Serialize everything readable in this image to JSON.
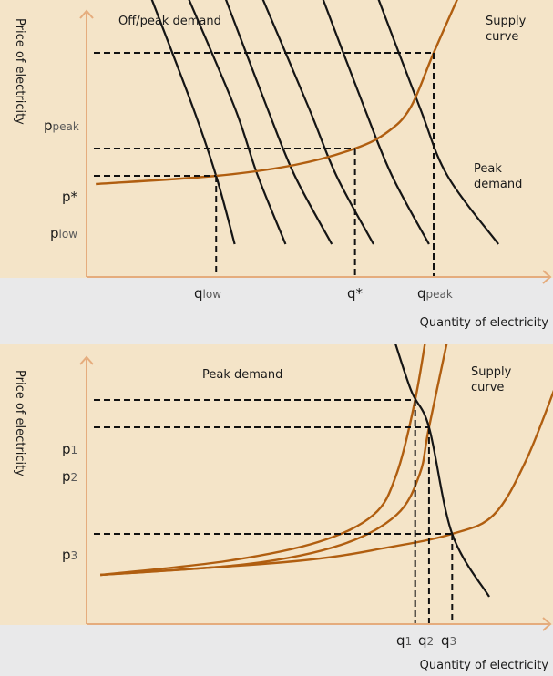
{
  "colors": {
    "plot_bg": "#f4e4c8",
    "page_bg": "#e9e9ea",
    "axis": "#e5ac7d",
    "supply": "#b05e10",
    "demand": "#151515"
  },
  "chart_data": [
    {
      "type": "line",
      "title": "",
      "ylabel": "Price of electricity",
      "xlabel": "Quantity of electricity",
      "annotations": {
        "offpeak_demand": "Off/peak demand",
        "peak_demand_line1": "Peak",
        "peak_demand_line2": "demand",
        "supply_line1": "Supply",
        "supply_line2": "curve"
      },
      "y_ticks": [
        {
          "main": "p",
          "sub": "peak",
          "value": 0.82
        },
        {
          "main": "p*",
          "sub": "",
          "value": 0.47
        },
        {
          "main": "p",
          "sub": "low",
          "value": 0.37
        }
      ],
      "x_ticks": [
        {
          "main": "q",
          "sub": "low",
          "value": 0.28
        },
        {
          "main": "q*",
          "sub": "",
          "value": 0.58
        },
        {
          "main": "q",
          "sub": "peak",
          "value": 0.75
        }
      ],
      "supply_curve": [
        [
          0.02,
          0.34
        ],
        [
          0.28,
          0.37
        ],
        [
          0.45,
          0.41
        ],
        [
          0.58,
          0.47
        ],
        [
          0.65,
          0.53
        ],
        [
          0.7,
          0.62
        ],
        [
          0.75,
          0.82
        ],
        [
          0.81,
          1.05
        ]
      ],
      "demand_curves": [
        [
          [
            0.14,
            1.02
          ],
          [
            0.23,
            0.62
          ],
          [
            0.28,
            0.37
          ],
          [
            0.32,
            0.12
          ]
        ],
        [
          [
            0.22,
            1.02
          ],
          [
            0.32,
            0.62
          ],
          [
            0.37,
            0.37
          ],
          [
            0.43,
            0.12
          ]
        ],
        [
          [
            0.3,
            1.02
          ],
          [
            0.39,
            0.62
          ],
          [
            0.45,
            0.37
          ],
          [
            0.53,
            0.12
          ]
        ],
        [
          [
            0.38,
            1.02
          ],
          [
            0.48,
            0.62
          ],
          [
            0.54,
            0.37
          ],
          [
            0.62,
            0.12
          ]
        ],
        [
          [
            0.51,
            1.02
          ],
          [
            0.6,
            0.62
          ],
          [
            0.66,
            0.37
          ],
          [
            0.74,
            0.12
          ]
        ],
        [
          [
            0.63,
            1.02
          ],
          [
            0.72,
            0.62
          ],
          [
            0.78,
            0.37
          ],
          [
            0.89,
            0.12
          ]
        ]
      ]
    },
    {
      "type": "line",
      "title": "",
      "ylabel": "Price of electricity",
      "xlabel": "Quantity of electricity",
      "annotations": {
        "peak_demand": "Peak demand",
        "supply_line1": "Supply",
        "supply_line2": "curve"
      },
      "y_ticks": [
        {
          "main": "p",
          "sub": "1",
          "value": 0.82
        },
        {
          "main": "p",
          "sub": "2",
          "value": 0.72
        },
        {
          "main": "p",
          "sub": "3",
          "value": 0.33
        }
      ],
      "x_ticks": [
        {
          "main": "q",
          "sub": "1",
          "value": 0.71
        },
        {
          "main": "q",
          "sub": "2",
          "value": 0.74
        },
        {
          "main": "q",
          "sub": "3",
          "value": 0.79
        }
      ],
      "supply_curves": [
        [
          [
            0.03,
            0.18
          ],
          [
            0.3,
            0.23
          ],
          [
            0.5,
            0.3
          ],
          [
            0.62,
            0.4
          ],
          [
            0.67,
            0.55
          ],
          [
            0.71,
            0.82
          ],
          [
            0.74,
            1.12
          ]
        ],
        [
          [
            0.03,
            0.18
          ],
          [
            0.35,
            0.22
          ],
          [
            0.55,
            0.29
          ],
          [
            0.67,
            0.4
          ],
          [
            0.72,
            0.55
          ],
          [
            0.74,
            0.72
          ],
          [
            0.79,
            1.12
          ]
        ],
        [
          [
            0.03,
            0.18
          ],
          [
            0.45,
            0.23
          ],
          [
            0.65,
            0.28
          ],
          [
            0.79,
            0.33
          ],
          [
            0.88,
            0.4
          ],
          [
            0.95,
            0.6
          ],
          [
            1.02,
            0.9
          ]
        ]
      ],
      "demand_curve": [
        [
          0.65,
          1.12
        ],
        [
          0.7,
          0.86
        ],
        [
          0.74,
          0.72
        ],
        [
          0.79,
          0.33
        ],
        [
          0.87,
          0.1
        ]
      ]
    }
  ]
}
